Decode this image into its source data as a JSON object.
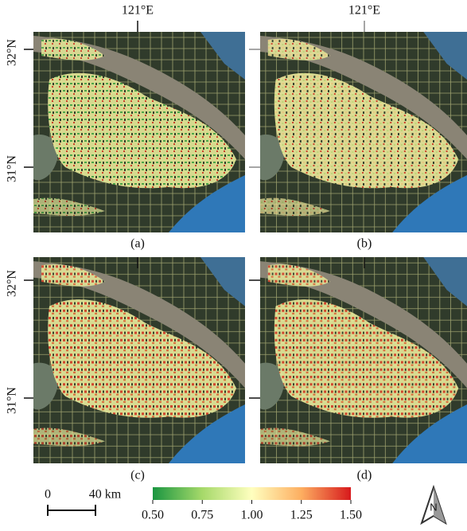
{
  "axes": {
    "top_labels": [
      "121°E",
      "121°E"
    ],
    "left_labels": [
      [
        "32°N",
        "31°N"
      ],
      [
        "32°N",
        "31°N"
      ]
    ]
  },
  "panels": [
    "(a)",
    "(b)",
    "(c)",
    "(d)"
  ],
  "colorbar": {
    "range": [
      0.5,
      1.5
    ],
    "colors": [
      "#1a9641",
      "#a6d96a",
      "#ffffbf",
      "#fdae61",
      "#d7191c"
    ],
    "ticks": [
      {
        "value": 0.5,
        "label": "0.50"
      },
      {
        "value": 0.75,
        "label": "0.75"
      },
      {
        "value": 1,
        "label": "1.00"
      },
      {
        "value": 1.25,
        "label": "1.25"
      },
      {
        "value": 1.5,
        "label": "1.50"
      }
    ]
  },
  "scale_bar": {
    "labels": [
      "0",
      "40 km"
    ]
  },
  "north_arrow": {
    "label": "N"
  }
}
